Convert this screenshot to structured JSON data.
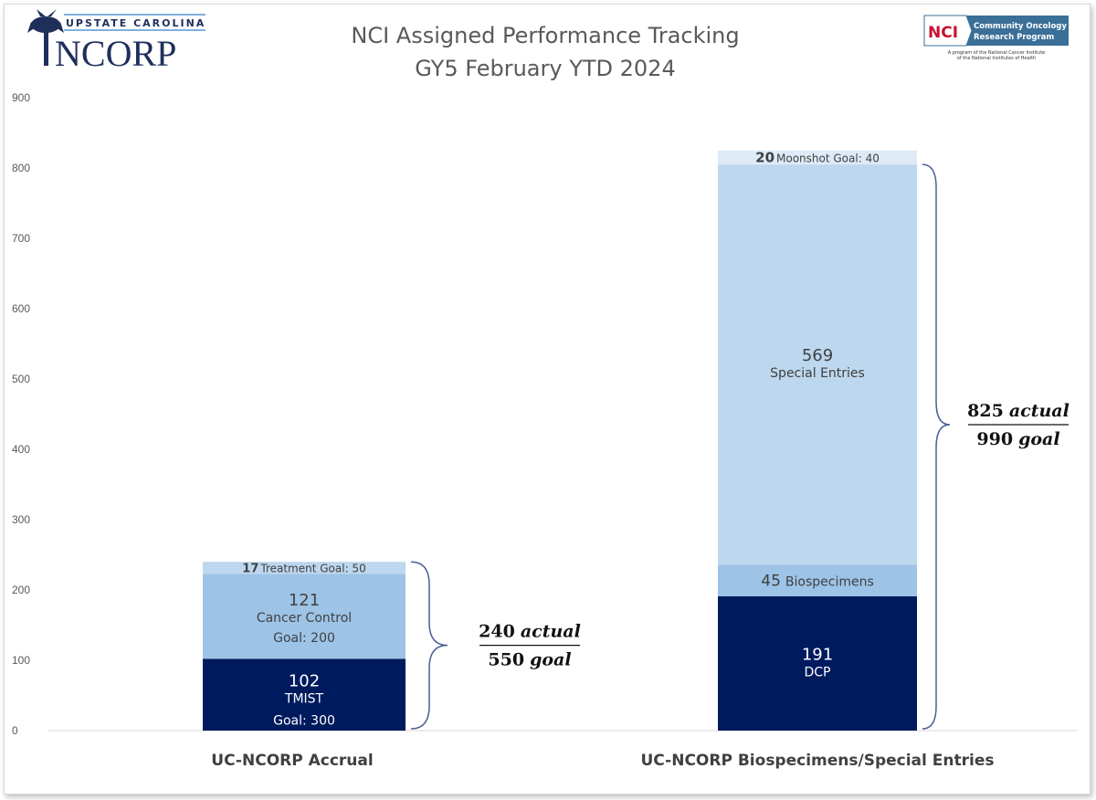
{
  "logos": {
    "left": {
      "line1": "UPSTATE CAROLINA",
      "line2": "NCORP"
    },
    "right": {
      "badge": "NCI",
      "line1": "Community Oncology",
      "line2": "Research Program",
      "sub1": "A program of the National Cancer Institute",
      "sub2": "of the National Institutes of Health"
    }
  },
  "chart_data": {
    "type": "bar",
    "stacked": true,
    "title": "NCI Assigned Performance Tracking",
    "subtitle": "GY5 February YTD 2024",
    "categories": [
      "UC-NCORP Accrual",
      "UC-NCORP Biospecimens/Special Entries"
    ],
    "ylim": [
      0,
      900
    ],
    "yticks": [
      "0",
      "100",
      "200",
      "300",
      "400",
      "500",
      "600",
      "700",
      "800",
      "900"
    ],
    "grid": false,
    "legend": "none",
    "stacks": [
      {
        "segments": [
          {
            "value": 102,
            "label": "TMIST",
            "goal": "Goal: 300",
            "color": "#001a5e"
          },
          {
            "value": 121,
            "label": "Cancer Control",
            "goal": "Goal: 200",
            "color": "#9dc3e6"
          },
          {
            "value": 17,
            "label": "Treatment Goal: 50",
            "goal": "",
            "color": "#bdd7ee"
          }
        ],
        "annotation": {
          "actual": "240",
          "actual_word": "actual",
          "goal": "550",
          "goal_word": "goal"
        }
      },
      {
        "segments": [
          {
            "value": 191,
            "label": "DCP",
            "goal": "",
            "color": "#001a5e"
          },
          {
            "value": 45,
            "label": "Biospecimens",
            "goal": "",
            "color": "#9dc3e6"
          },
          {
            "value": 569,
            "label": "Special Entries",
            "goal": "",
            "color": "#bdd7ee"
          },
          {
            "value": 20,
            "label": "Moonshot Goal: 40",
            "goal": "",
            "color": "#deebf7"
          }
        ],
        "annotation": {
          "actual": "825",
          "actual_word": "actual",
          "goal": "990",
          "goal_word": "goal"
        }
      }
    ]
  }
}
